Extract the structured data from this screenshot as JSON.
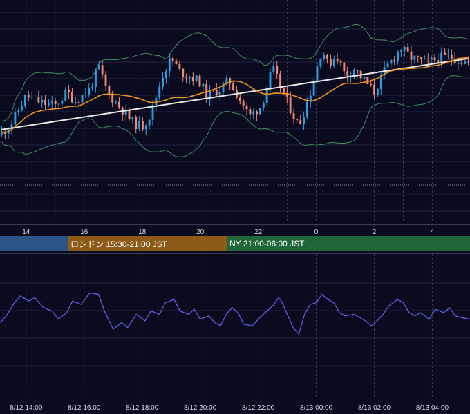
{
  "colors": {
    "background": "#0b0b1f",
    "grid": "#23233f",
    "candle_up": "#2f9be0",
    "candle_down": "#f08872",
    "bollinger": "#3f8f5f",
    "ma_short": "#f0921a",
    "ma_long": "#e8e8e8",
    "oscillator": "#5a63e6",
    "session_tokyo": "#2c5488",
    "session_london": "#8d5a17",
    "session_ny": "#1f6638"
  },
  "sessions": {
    "london_label": "ロンドン 15:30-21:00 JST",
    "ny_label": "NY 21:00-06:00 JST"
  },
  "chart_data": [
    {
      "type": "candlestick",
      "title": "",
      "x_tick_labels": [
        "14",
        "16",
        "18",
        "20",
        "22",
        "0",
        "2",
        "4"
      ],
      "x_tick_hours": [
        14,
        16,
        18,
        20,
        22,
        24,
        26,
        28
      ],
      "x_range_hours": [
        13.1,
        29.3
      ],
      "indicators": [
        "bollinger_bands",
        "moving_average_short",
        "moving_average_long"
      ],
      "price_range": [
        0,
        100
      ],
      "series": [
        {
          "name": "",
          "type": "candles",
          "close_path": [
            [
              13.1,
              35
            ],
            [
              13.5,
              42
            ],
            [
              14.0,
              58
            ],
            [
              14.5,
              54
            ],
            [
              15.0,
              52
            ],
            [
              15.4,
              60
            ],
            [
              15.7,
              55
            ],
            [
              16.2,
              62
            ],
            [
              16.5,
              75
            ],
            [
              16.8,
              60
            ],
            [
              17.2,
              52
            ],
            [
              17.7,
              42
            ],
            [
              18.0,
              40
            ],
            [
              18.3,
              47
            ],
            [
              18.7,
              70
            ],
            [
              19.0,
              80
            ],
            [
              19.3,
              72
            ],
            [
              19.7,
              69
            ],
            [
              20.0,
              66
            ],
            [
              20.2,
              58
            ],
            [
              20.7,
              62
            ],
            [
              21.0,
              67
            ],
            [
              21.4,
              55
            ],
            [
              21.7,
              46
            ],
            [
              22.1,
              52
            ],
            [
              22.5,
              74
            ],
            [
              22.9,
              58
            ],
            [
              23.4,
              40
            ],
            [
              23.8,
              60
            ],
            [
              24.2,
              86
            ],
            [
              24.4,
              76
            ],
            [
              24.7,
              82
            ],
            [
              25.0,
              70
            ],
            [
              25.3,
              74
            ],
            [
              25.5,
              70
            ],
            [
              26.0,
              60
            ],
            [
              26.4,
              74
            ],
            [
              26.9,
              86
            ],
            [
              27.3,
              80
            ],
            [
              27.8,
              77
            ],
            [
              28.2,
              80
            ],
            [
              28.6,
              81
            ],
            [
              28.9,
              79
            ],
            [
              29.3,
              77
            ]
          ]
        }
      ]
    },
    {
      "type": "line",
      "title": "",
      "x_tick_labels": [
        "8/12 14:00",
        "8/12 16:00",
        "8/12 18:00",
        "8/12 20:00",
        "8/12 22:00",
        "8/13 00:00",
        "8/13 02:00",
        "8/13 04:00"
      ],
      "x_tick_hours": [
        14,
        16,
        18,
        20,
        22,
        24,
        26,
        28
      ],
      "x_range_hours": [
        13.1,
        29.3
      ],
      "y_range": [
        0,
        100
      ],
      "series": [
        {
          "name": "",
          "points": [
            [
              13.1,
              48
            ],
            [
              13.3,
              55
            ],
            [
              13.6,
              72
            ],
            [
              13.8,
              80
            ],
            [
              14.1,
              74
            ],
            [
              14.3,
              78
            ],
            [
              14.6,
              66
            ],
            [
              14.9,
              62
            ],
            [
              15.1,
              52
            ],
            [
              15.4,
              60
            ],
            [
              15.6,
              74
            ],
            [
              15.9,
              70
            ],
            [
              16.2,
              84
            ],
            [
              16.5,
              82
            ],
            [
              16.7,
              62
            ],
            [
              17.0,
              40
            ],
            [
              17.3,
              48
            ],
            [
              17.5,
              42
            ],
            [
              17.8,
              58
            ],
            [
              18.1,
              50
            ],
            [
              18.3,
              62
            ],
            [
              18.6,
              58
            ],
            [
              18.8,
              72
            ],
            [
              19.1,
              76
            ],
            [
              19.3,
              62
            ],
            [
              19.6,
              58
            ],
            [
              19.8,
              64
            ],
            [
              20.0,
              52
            ],
            [
              20.3,
              56
            ],
            [
              20.5,
              48
            ],
            [
              20.7,
              44
            ],
            [
              20.9,
              58
            ],
            [
              21.1,
              66
            ],
            [
              21.3,
              60
            ],
            [
              21.5,
              46
            ],
            [
              21.8,
              44
            ],
            [
              22.0,
              52
            ],
            [
              22.3,
              62
            ],
            [
              22.5,
              68
            ],
            [
              22.7,
              78
            ],
            [
              22.8,
              74
            ],
            [
              23.0,
              58
            ],
            [
              23.2,
              42
            ],
            [
              23.4,
              34
            ],
            [
              23.6,
              58
            ],
            [
              23.8,
              70
            ],
            [
              24.0,
              72
            ],
            [
              24.2,
              82
            ],
            [
              24.4,
              76
            ],
            [
              24.6,
              72
            ],
            [
              24.8,
              60
            ],
            [
              25.0,
              56
            ],
            [
              25.3,
              58
            ],
            [
              25.5,
              54
            ],
            [
              25.7,
              50
            ],
            [
              25.9,
              44
            ],
            [
              26.1,
              50
            ],
            [
              26.3,
              58
            ],
            [
              26.5,
              68
            ],
            [
              26.8,
              76
            ],
            [
              27.0,
              72
            ],
            [
              27.2,
              60
            ],
            [
              27.4,
              56
            ],
            [
              27.6,
              60
            ],
            [
              27.9,
              52
            ],
            [
              28.1,
              64
            ],
            [
              28.4,
              60
            ],
            [
              28.6,
              66
            ],
            [
              28.8,
              56
            ],
            [
              29.0,
              54
            ],
            [
              29.3,
              52
            ]
          ]
        }
      ]
    }
  ]
}
